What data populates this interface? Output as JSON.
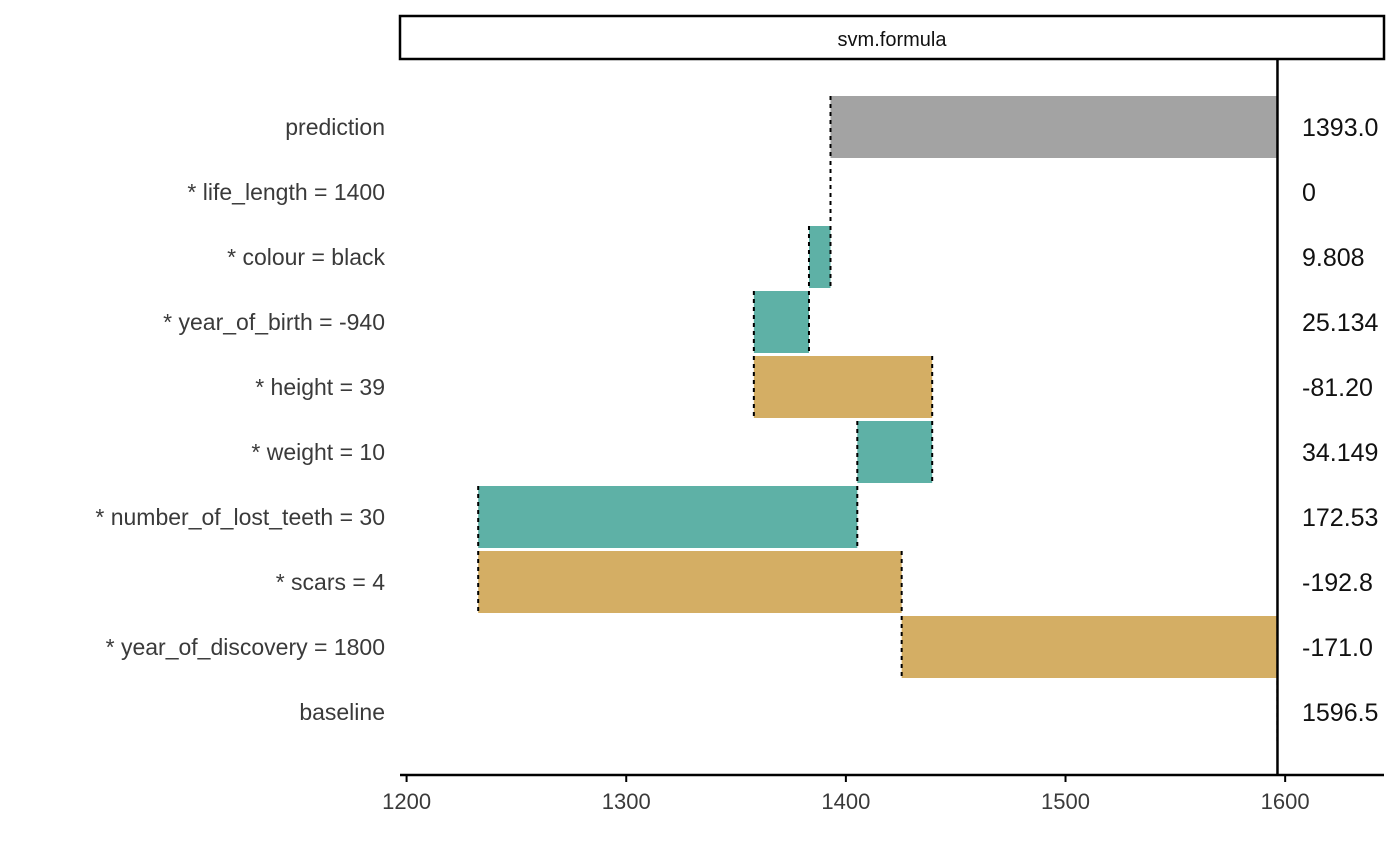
{
  "chart_data": {
    "type": "bar",
    "panel_title": "svm.formula",
    "rows": [
      {
        "label": "prediction",
        "value_label": "1393.0",
        "start": 1393.0,
        "end": 1596.5,
        "kind": "prediction"
      },
      {
        "label": "* life_length = 1400",
        "value_label": "0",
        "start": 1393.0,
        "end": 1393.0,
        "kind": "zero"
      },
      {
        "label": "* colour = black",
        "value_label": "9.808",
        "start": 1383.2,
        "end": 1393.0,
        "kind": "positive"
      },
      {
        "label": "* year_of_birth = -940",
        "value_label": "25.134",
        "start": 1358.1,
        "end": 1383.2,
        "kind": "positive"
      },
      {
        "label": "* height = 39",
        "value_label": "-81.20",
        "start": 1358.1,
        "end": 1439.3,
        "kind": "negative"
      },
      {
        "label": "* weight = 10",
        "value_label": "34.149",
        "start": 1405.2,
        "end": 1439.3,
        "kind": "positive"
      },
      {
        "label": "* number_of_lost_teeth = 30",
        "value_label": "172.53",
        "start": 1232.6,
        "end": 1405.2,
        "kind": "positive"
      },
      {
        "label": "* scars = 4",
        "value_label": "-192.8",
        "start": 1232.6,
        "end": 1425.4,
        "kind": "negative"
      },
      {
        "label": "* year_of_discovery = 1800",
        "value_label": "-171.0",
        "start": 1425.4,
        "end": 1596.5,
        "kind": "negative"
      },
      {
        "label": "baseline",
        "value_label": "1596.5",
        "start": 1596.5,
        "end": 1596.5,
        "kind": "baseline"
      }
    ],
    "baseline_value": 1596.5,
    "x_ticks": [
      1200,
      1300,
      1400,
      1500,
      1600
    ],
    "xlim": [
      1197,
      1645
    ],
    "colors": {
      "positive": "#5eb1a6",
      "negative": "#d4ae64",
      "prediction": "#a3a3a3",
      "axis": "#000000"
    },
    "grid": false,
    "legend": "none"
  }
}
